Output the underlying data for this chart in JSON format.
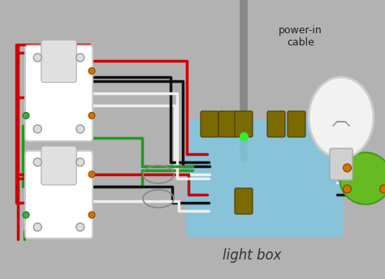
{
  "bg_color": "#b2b2b2",
  "power_label": "power-in\ncable",
  "lightbox_label": "light box",
  "lightbox_color": "#7ec8e3",
  "wire_red": "#cc0000",
  "wire_black": "#111111",
  "wire_white": "#eeeeee",
  "wire_green": "#229922",
  "wire_gray": "#888888",
  "screw_color": "#7a6a00",
  "switch_face": "#f0f0f0",
  "switch_edge": "#cccccc",
  "socket_green": "#66bb22",
  "bulb_white": "#f5f5f5",
  "bulb_gray": "#bbbbbb"
}
